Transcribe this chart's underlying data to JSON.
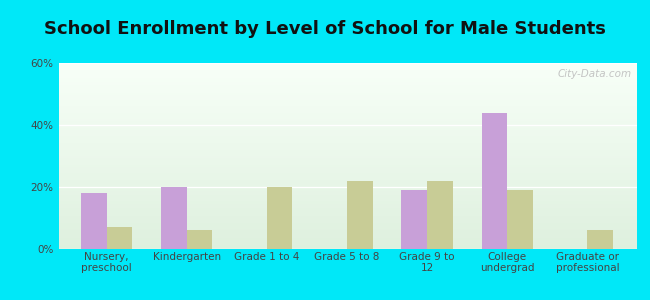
{
  "title": "School Enrollment by Level of School for Male Students",
  "categories": [
    "Nursery,\npreschool",
    "Kindergarten",
    "Grade 1 to 4",
    "Grade 5 to 8",
    "Grade 9 to\n12",
    "College\nundergrad",
    "Graduate or\nprofessional"
  ],
  "woodbine": [
    18,
    20,
    0,
    0,
    19,
    44,
    0
  ],
  "kansas": [
    7,
    6,
    20,
    22,
    22,
    19,
    6
  ],
  "woodbine_color": "#c8a0d8",
  "kansas_color": "#c8cc96",
  "background_outer": "#00e8f8",
  "background_inner_top": "#f4fff4",
  "background_inner_bottom": "#deecd8",
  "title_fontsize": 13,
  "tick_fontsize": 7.5,
  "legend_fontsize": 9,
  "ylim": [
    0,
    60
  ],
  "yticks": [
    0,
    20,
    40,
    60
  ],
  "ytick_labels": [
    "0%",
    "20%",
    "40%",
    "60%"
  ],
  "bar_width": 0.32,
  "watermark": "City-Data.com"
}
